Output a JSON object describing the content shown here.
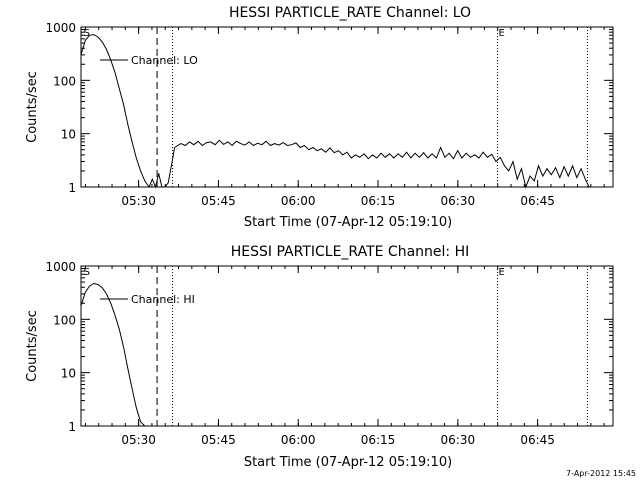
{
  "chart_data": [
    {
      "type": "line",
      "title": "HESSI PARTICLE_RATE Channel: LO",
      "xlabel": "Start Time (07-Apr-12 05:19:10)",
      "ylabel": "Counts/sec",
      "x_unit": "minutes after 05:19:10",
      "xlim": [
        0,
        100
      ],
      "ylim": [
        1,
        1000
      ],
      "yscale": "log",
      "xtick_labels": [
        "05:30",
        "05:45",
        "06:00",
        "06:15",
        "06:30",
        "06:45"
      ],
      "xtick_positions": [
        10.833,
        25.833,
        40.833,
        55.833,
        70.833,
        85.833
      ],
      "ytick_labels": [
        "1",
        "10",
        "100",
        "1000"
      ],
      "ytick_values": [
        1,
        10,
        100,
        1000
      ],
      "marker_labels": [
        "S",
        "E"
      ],
      "marker_positions": [
        0.3,
        78.3
      ],
      "vlines": [
        {
          "x": 14.3,
          "style": "dashed"
        },
        {
          "x": 17.2,
          "style": "dotted"
        },
        {
          "x": 78.3,
          "style": "dotted"
        },
        {
          "x": 95.2,
          "style": "dotted"
        }
      ],
      "legend": "Channel: LO",
      "series": [
        {
          "name": "Channel: LO",
          "x": [
            0,
            0.8,
            1.6,
            2.4,
            3.2,
            4,
            4.8,
            5.6,
            6.4,
            7.2,
            8,
            8.8,
            9.6,
            10.4,
            11.2,
            12,
            12.8,
            13.4,
            14,
            14.6,
            15.2,
            15.8,
            16.4,
            17,
            17.6,
            18.2,
            18.8,
            19.6,
            20.4,
            21.2,
            22,
            22.8,
            23.6,
            24.4,
            25.2,
            26,
            26.8,
            27.6,
            28.4,
            29.2,
            30,
            30.8,
            31.6,
            32.4,
            33.2,
            34,
            34.8,
            35.6,
            36.4,
            37.2,
            38,
            38.8,
            39.6,
            40.4,
            41.2,
            42,
            42.8,
            43.6,
            44.4,
            45.2,
            46,
            46.8,
            47.6,
            48.4,
            49.2,
            50,
            50.8,
            51.6,
            52.4,
            53.2,
            54,
            54.8,
            55.6,
            56.4,
            57.2,
            58,
            58.8,
            59.6,
            60.4,
            61.2,
            62,
            62.8,
            63.6,
            64.4,
            65.2,
            66,
            66.8,
            67.6,
            68.4,
            69.2,
            70,
            70.8,
            71.6,
            72.4,
            73.2,
            74,
            74.8,
            75.6,
            76.4,
            77.2,
            78,
            78.8,
            79.6,
            80.4,
            81.2,
            82,
            82.8,
            83.6,
            84.4,
            85.2,
            86,
            86.8,
            87.6,
            88.4,
            89.2,
            90,
            90.8,
            91.6,
            92.4,
            93.2,
            94,
            94.8,
            95.5
          ],
          "values": [
            300,
            560,
            700,
            720,
            650,
            520,
            380,
            240,
            140,
            70,
            35,
            15,
            7,
            3.5,
            2,
            1.3,
            1,
            1.4,
            1,
            1.8,
            1,
            1,
            1.2,
            2.5,
            5.5,
            6,
            6.5,
            6,
            7,
            6.2,
            7.2,
            6,
            6.8,
            7,
            6.2,
            7.5,
            6.3,
            7,
            6,
            7.2,
            6.5,
            6.1,
            7,
            6,
            6.6,
            6.2,
            7.2,
            6,
            6.5,
            6.1,
            6.8,
            6,
            6.2,
            6.7,
            5.5,
            6,
            5,
            5.5,
            4.8,
            5.2,
            4.5,
            5.4,
            4.4,
            4.8,
            4,
            4.5,
            3.5,
            4,
            3.6,
            4.2,
            3.4,
            4,
            3.5,
            4.3,
            3.6,
            4.2,
            3.5,
            4.2,
            3.6,
            4.5,
            3.5,
            4.3,
            3.6,
            4.4,
            3.5,
            4.2,
            3.5,
            5.5,
            3.6,
            4.3,
            3.4,
            4.8,
            3.5,
            4.3,
            3.6,
            4,
            3.5,
            4.5,
            3.6,
            4.1,
            3,
            3.6,
            2.5,
            2,
            3,
            1.4,
            2.2,
            1,
            1.6,
            1.3,
            2.5,
            1.6,
            2.2,
            1.7,
            2.3,
            1.5,
            2.4,
            1.6,
            2.5,
            1.5,
            2.2,
            1.4,
            1
          ]
        }
      ]
    },
    {
      "type": "line",
      "title": "HESSI PARTICLE_RATE Channel: HI",
      "xlabel": "Start Time (07-Apr-12 05:19:10)",
      "ylabel": "Counts/sec",
      "x_unit": "minutes after 05:19:10",
      "xlim": [
        0,
        100
      ],
      "ylim": [
        1,
        1000
      ],
      "yscale": "log",
      "xtick_labels": [
        "05:30",
        "05:45",
        "06:00",
        "06:15",
        "06:30",
        "06:45"
      ],
      "xtick_positions": [
        10.833,
        25.833,
        40.833,
        55.833,
        70.833,
        85.833
      ],
      "ytick_labels": [
        "1",
        "10",
        "100",
        "1000"
      ],
      "ytick_values": [
        1,
        10,
        100,
        1000
      ],
      "marker_labels": [
        "S",
        "E"
      ],
      "marker_positions": [
        0.3,
        78.3
      ],
      "vlines": [
        {
          "x": 14.3,
          "style": "dashed"
        },
        {
          "x": 17.2,
          "style": "dotted"
        },
        {
          "x": 78.3,
          "style": "dotted"
        },
        {
          "x": 95.2,
          "style": "dotted"
        }
      ],
      "legend": "Channel: HI",
      "series": [
        {
          "name": "Channel: HI",
          "x": [
            0,
            0.8,
            1.6,
            2.4,
            3.2,
            4,
            4.8,
            5.6,
            6.4,
            7.2,
            8,
            8.8,
            9.6,
            10.4,
            11.2,
            12
          ],
          "values": [
            180,
            320,
            420,
            470,
            450,
            390,
            300,
            200,
            120,
            65,
            30,
            12,
            5,
            2.2,
            1.2,
            1
          ]
        }
      ]
    }
  ],
  "footer": {
    "timestamp": "7-Apr-2012 15:45"
  }
}
